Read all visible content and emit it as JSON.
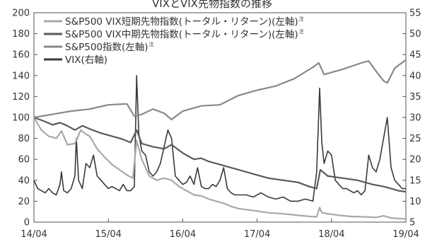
{
  "chart_data": {
    "type": "line",
    "title": "VIXとVIX先物指数の推移",
    "x_categories": [
      "14/04",
      "15/04",
      "16/04",
      "17/04",
      "18/04",
      "19/04"
    ],
    "left_axis": {
      "ylim": [
        0,
        200
      ],
      "ticks": [
        "0",
        "20",
        "40",
        "60",
        "80",
        "100",
        "120",
        "140",
        "160",
        "180",
        "200"
      ]
    },
    "right_axis": {
      "ylim": [
        5,
        55
      ],
      "ticks": [
        "5",
        "10",
        "15",
        "20",
        "25",
        "30",
        "35",
        "40",
        "45",
        "50",
        "55"
      ]
    },
    "grid": false,
    "legend_position": "top-left",
    "series": [
      {
        "name": "S&P500 VIX短期先物指数(トータル・リターン)(左軸)",
        "note": "注",
        "axis": "left",
        "color": "#a8a8a8",
        "x": [
          2014.25,
          2014.35,
          2014.45,
          2014.55,
          2014.62,
          2014.7,
          2014.8,
          2014.88,
          2014.95,
          2015.0,
          2015.1,
          2015.2,
          2015.3,
          2015.4,
          2015.5,
          2015.58,
          2015.63,
          2015.7,
          2015.8,
          2015.9,
          2016.0,
          2016.1,
          2016.2,
          2016.3,
          2016.4,
          2016.5,
          2016.6,
          2016.7,
          2016.8,
          2016.9,
          2017.0,
          2017.2,
          2017.4,
          2017.6,
          2017.8,
          2017.95,
          2018.05,
          2018.09,
          2018.12,
          2018.2,
          2018.35,
          2018.5,
          2018.7,
          2018.85,
          2018.95,
          2019.05,
          2019.15,
          2019.25
        ],
        "values": [
          100,
          88,
          82,
          80,
          87,
          74,
          75,
          88,
          84,
          82,
          70,
          62,
          55,
          50,
          45,
          42,
          78,
          60,
          44,
          40,
          42,
          40,
          34,
          30,
          26,
          25,
          22,
          20,
          18,
          15,
          13,
          11,
          9,
          8,
          6.5,
          5.5,
          5,
          14,
          9,
          8,
          6.5,
          5.5,
          5,
          4.5,
          6,
          4,
          3.5,
          3
        ]
      },
      {
        "name": "S&P500 VIX中期先物指数(トータル・リターン)(左軸)",
        "note": "注",
        "axis": "left",
        "color": "#5a5a5a",
        "x": [
          2014.25,
          2014.4,
          2014.5,
          2014.6,
          2014.7,
          2014.8,
          2014.9,
          2015.0,
          2015.15,
          2015.3,
          2015.45,
          2015.55,
          2015.63,
          2015.7,
          2015.85,
          2016.0,
          2016.1,
          2016.25,
          2016.4,
          2016.5,
          2016.6,
          2016.8,
          2017.0,
          2017.2,
          2017.4,
          2017.6,
          2017.8,
          2017.95,
          2018.05,
          2018.1,
          2018.2,
          2018.4,
          2018.6,
          2018.8,
          2018.95,
          2019.05,
          2019.15,
          2019.25
        ],
        "values": [
          100,
          96,
          93,
          95,
          92,
          88,
          92,
          89,
          85,
          82,
          79,
          76,
          88,
          75,
          72,
          70,
          74,
          66,
          60,
          61,
          58,
          54,
          50,
          46,
          42,
          40,
          38,
          34,
          32,
          50,
          44,
          42,
          40,
          36,
          34,
          32,
          30,
          29
        ]
      },
      {
        "name": "S&P500指数(左軸)",
        "note": "注",
        "axis": "left",
        "color": "#888888",
        "x": [
          2014.25,
          2014.5,
          2014.75,
          2015.0,
          2015.25,
          2015.5,
          2015.6,
          2015.7,
          2015.85,
          2016.0,
          2016.1,
          2016.25,
          2016.5,
          2016.75,
          2017.0,
          2017.25,
          2017.5,
          2017.75,
          2018.0,
          2018.08,
          2018.15,
          2018.4,
          2018.65,
          2018.75,
          2018.85,
          2018.95,
          2019.0,
          2019.1,
          2019.25
        ],
        "values": [
          100,
          103,
          106,
          108,
          112,
          113,
          101,
          103,
          108,
          104,
          98,
          106,
          111,
          112,
          121,
          126,
          130,
          137,
          148,
          152,
          141,
          146,
          152,
          154,
          144,
          135,
          133,
          147,
          155
        ]
      },
      {
        "name": "VIX(右軸)",
        "axis": "right",
        "color": "#3a3a3a",
        "x": [
          2014.25,
          2014.3,
          2014.35,
          2014.4,
          2014.45,
          2014.5,
          2014.55,
          2014.6,
          2014.62,
          2014.65,
          2014.7,
          2014.75,
          2014.8,
          2014.82,
          2014.85,
          2014.9,
          2014.95,
          2015.0,
          2015.05,
          2015.1,
          2015.15,
          2015.2,
          2015.25,
          2015.3,
          2015.35,
          2015.4,
          2015.45,
          2015.5,
          2015.55,
          2015.6,
          2015.63,
          2015.66,
          2015.7,
          2015.75,
          2015.8,
          2015.85,
          2015.9,
          2015.95,
          2016.0,
          2016.05,
          2016.1,
          2016.15,
          2016.2,
          2016.25,
          2016.3,
          2016.35,
          2016.4,
          2016.45,
          2016.5,
          2016.55,
          2016.6,
          2016.65,
          2016.7,
          2016.75,
          2016.8,
          2016.85,
          2016.9,
          2016.95,
          2017.0,
          2017.1,
          2017.2,
          2017.3,
          2017.4,
          2017.5,
          2017.6,
          2017.7,
          2017.8,
          2017.9,
          2018.0,
          2018.05,
          2018.09,
          2018.12,
          2018.15,
          2018.2,
          2018.25,
          2018.3,
          2018.35,
          2018.4,
          2018.45,
          2018.5,
          2018.55,
          2018.6,
          2018.65,
          2018.7,
          2018.75,
          2018.8,
          2018.85,
          2018.9,
          2018.95,
          2019.0,
          2019.05,
          2019.1,
          2019.15,
          2019.2,
          2019.25
        ],
        "values": [
          15,
          13,
          12.5,
          12,
          13,
          12,
          11.5,
          14,
          17,
          12.5,
          12,
          13,
          16,
          25,
          15,
          13,
          19,
          18,
          21,
          16,
          15,
          14,
          13,
          13.5,
          13,
          12.5,
          14,
          12.5,
          12.5,
          13.5,
          40,
          26,
          22,
          21,
          17,
          16,
          17,
          19,
          23,
          27,
          25,
          16,
          15,
          14,
          14.5,
          16,
          14,
          18,
          13.5,
          13,
          13,
          14,
          13.5,
          15,
          18,
          13,
          12,
          11.5,
          11.5,
          11.5,
          11,
          12,
          11,
          10.5,
          11,
          10,
          10,
          10.5,
          10,
          17,
          37,
          24,
          19,
          22,
          21,
          15,
          14,
          13,
          13,
          12.5,
          12,
          12.5,
          11.5,
          12.5,
          21,
          18,
          17,
          20,
          25,
          30,
          18,
          15,
          14,
          13,
          13
        ]
      }
    ]
  }
}
